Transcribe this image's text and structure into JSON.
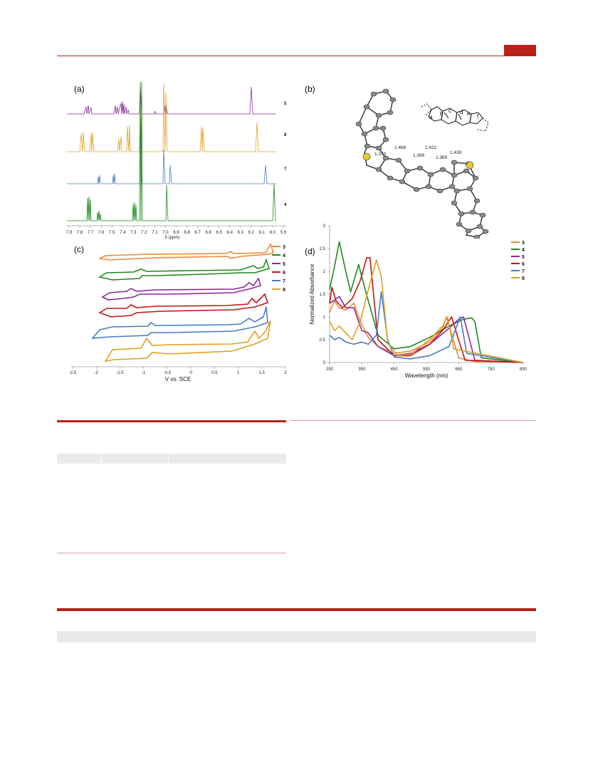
{
  "panels": {
    "a": "(a)",
    "b": "(b)",
    "c": "(c)",
    "d": "(d)"
  },
  "nmr": {
    "xlabel": "δ (ppm)",
    "ticks": [
      "7.9",
      "7.8",
      "7.7",
      "7.6",
      "7.5",
      "7.4",
      "7.3",
      "7.2",
      "7.1",
      "7.0",
      "6.9",
      "6.8",
      "6.7",
      "6.6",
      "6.5",
      "6.4",
      "6.3",
      "6.2",
      "6.1",
      "6.0",
      "5.9"
    ],
    "trace_labels": [
      "5",
      "8",
      "7",
      "4"
    ]
  },
  "crystal": {
    "bond_lengths": [
      "1.373",
      "1.468",
      "1.368",
      "1.422",
      "1.389",
      "1.438"
    ],
    "site_labels": [
      "a",
      "b",
      "c",
      "d",
      "e",
      "f"
    ]
  },
  "cv": {
    "xlabel": "V vs. SCE",
    "ticks": [
      "-2.5",
      "-2",
      "-1.5",
      "-1",
      "-0.5",
      "0",
      "0.5",
      "1",
      "1.5",
      "2"
    ],
    "legend": [
      "3",
      "4",
      "5",
      "6",
      "7",
      "8"
    ]
  },
  "colors": {
    "3": "#f0883a",
    "4": "#1e8a1e",
    "5": "#8a2a9a",
    "6": "#c41515",
    "7": "#4a7bc8",
    "8": "#e0a020",
    "accent": "#b9201a"
  },
  "chart_data": {
    "type": "line",
    "xlabel": "Wavelength (nm)",
    "ylabel": "Normalized Absorbance",
    "xlim": [
      250,
      850
    ],
    "ylim": [
      0,
      3
    ],
    "xticks": [
      "250",
      "350",
      "450",
      "550",
      "650",
      "750",
      "850"
    ],
    "yticks": [
      "0",
      "0.5",
      "1",
      "1.5",
      "2",
      "2.5",
      "3"
    ],
    "legend_position": "top-right",
    "series": [
      {
        "name": "3",
        "x": [
          250,
          265,
          280,
          300,
          325,
          345,
          370,
          400,
          450,
          500,
          560,
          600,
          612,
          625,
          650,
          700,
          850
        ],
        "y": [
          1.1,
          1.35,
          1.2,
          1.15,
          1.3,
          0.9,
          0.55,
          0.35,
          0.2,
          0.25,
          0.45,
          0.75,
          1.0,
          0.7,
          0.1,
          0.02,
          0
        ]
      },
      {
        "name": "4",
        "x": [
          250,
          265,
          280,
          300,
          315,
          340,
          360,
          400,
          450,
          500,
          560,
          620,
          665,
          690,
          700,
          720,
          850
        ],
        "y": [
          1.6,
          2.1,
          2.65,
          2.0,
          1.55,
          2.15,
          1.6,
          0.6,
          0.3,
          0.35,
          0.55,
          0.8,
          0.95,
          0.98,
          0.9,
          0.1,
          0
        ]
      },
      {
        "name": "5",
        "x": [
          250,
          262,
          280,
          300,
          325,
          350,
          370,
          400,
          450,
          500,
          560,
          620,
          650,
          665,
          680,
          700,
          850
        ],
        "y": [
          1.3,
          1.35,
          1.45,
          1.2,
          1.2,
          0.7,
          0.65,
          0.35,
          0.15,
          0.2,
          0.4,
          0.75,
          0.95,
          1.0,
          0.6,
          0.05,
          0
        ]
      },
      {
        "name": "6",
        "x": [
          250,
          257,
          270,
          290,
          320,
          345,
          365,
          375,
          400,
          450,
          500,
          560,
          600,
          628,
          645,
          670,
          850
        ],
        "y": [
          1.3,
          1.65,
          1.35,
          1.2,
          1.4,
          1.8,
          2.3,
          2.3,
          0.5,
          0.15,
          0.15,
          0.4,
          0.7,
          1.0,
          0.6,
          0.05,
          0
        ]
      },
      {
        "name": "7",
        "x": [
          250,
          265,
          280,
          300,
          325,
          350,
          370,
          395,
          410,
          430,
          450,
          500,
          560,
          620,
          655,
          675,
          850
        ],
        "y": [
          0.6,
          0.5,
          0.55,
          0.45,
          0.4,
          0.45,
          0.4,
          0.6,
          1.55,
          0.5,
          0.12,
          0.08,
          0.15,
          0.35,
          1.0,
          0.2,
          0
        ]
      },
      {
        "name": "8",
        "x": [
          250,
          265,
          280,
          300,
          320,
          345,
          370,
          395,
          410,
          430,
          460,
          500,
          560,
          600,
          615,
          635,
          850
        ],
        "y": [
          0.9,
          0.7,
          0.8,
          0.65,
          0.5,
          0.9,
          1.6,
          2.25,
          1.9,
          0.45,
          0.15,
          0.18,
          0.5,
          0.8,
          1.0,
          0.3,
          0
        ]
      }
    ]
  }
}
